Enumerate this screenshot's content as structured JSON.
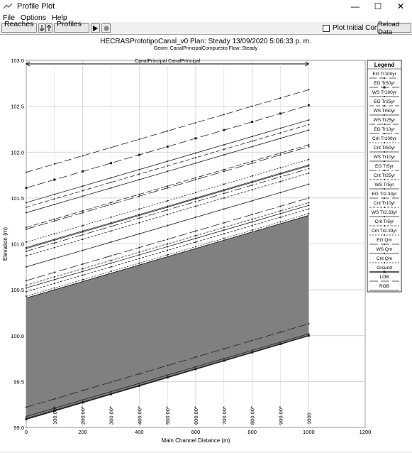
{
  "window": {
    "title": "Profile Plot",
    "controls": [
      "—",
      "☐",
      "✕"
    ]
  },
  "menu": [
    "File",
    "Options",
    "Help"
  ],
  "toolbar": {
    "reaches_label": "Reaches ...",
    "profiles_label": "Profiles ...",
    "plot_initial_label": "Plot Initial Conditions",
    "reload_label": "Reload Data"
  },
  "header": {
    "line1": "HECRASPrototipoCanal_v0       Plan: Steady     13/09/2020   5:06:33 p. m.",
    "line2": "Geom: CanalPrincipalCompuesto    Flow: Steady",
    "reach_label": "CanalPrincipal CanalPrincipal"
  },
  "chart_data": {
    "type": "line",
    "xlabel": "Main Channel Distance (m)",
    "ylabel": "Elevation (m)",
    "xlim": [
      0,
      1200
    ],
    "ylim": [
      99.0,
      103.0
    ],
    "x_ticks": [
      "0",
      "200",
      "400",
      "600",
      "800",
      "1000",
      "1200"
    ],
    "y_ticks": [
      "99.0",
      "99.5",
      "100.0",
      "100.5",
      "101.0",
      "101.5",
      "102.0",
      "102.5",
      "103.0"
    ],
    "station_labels": [
      "100.00*",
      "200.00*",
      "300.00*",
      "400.00*",
      "500.00*",
      "600.00*",
      "700.00*",
      "800.00*",
      "900.00*",
      "1000"
    ],
    "grid": true,
    "legend_title": "Legend",
    "legend_placement": "right",
    "series": [
      {
        "name": "EG  Tr100yr",
        "y0": 101.78,
        "y1": 102.68,
        "dash": "10,4",
        "marker": "dot"
      },
      {
        "name": "EG  Tr50yr",
        "y0": 101.61,
        "y1": 102.51,
        "dash": "12,4",
        "marker": "square"
      },
      {
        "name": "WS  Tr100yr",
        "y0": 101.45,
        "y1": 102.35,
        "dash": "none",
        "marker": "dot"
      },
      {
        "name": "EG  Tr25yr",
        "y0": 101.4,
        "y1": 102.3,
        "dash": "6,3",
        "marker": "dot"
      },
      {
        "name": "WS  Tr50yr",
        "y0": 101.34,
        "y1": 102.24,
        "dash": "none",
        "marker": "dot"
      },
      {
        "name": "WS  Tr25yr",
        "y0": 101.18,
        "y1": 102.08,
        "dash": "8,3",
        "marker": "dot"
      },
      {
        "name": "EG  Tr10yr",
        "y0": 101.16,
        "y1": 102.06,
        "dash": "14,4",
        "marker": "dot"
      },
      {
        "name": "Crit  Tr100yr",
        "y0": 101.02,
        "y1": 101.92,
        "dash": "2,2",
        "marker": "dot"
      },
      {
        "name": "Crit  Tr50yr",
        "y0": 100.96,
        "y1": 101.86,
        "dash": "none",
        "marker": "dot"
      },
      {
        "name": "WS  Tr10yr",
        "y0": 100.95,
        "y1": 101.85,
        "dash": "none",
        "marker": "dot"
      },
      {
        "name": "EG  Tr5yr",
        "y0": 100.92,
        "y1": 101.82,
        "dash": "10,3,2,3",
        "marker": "dot"
      },
      {
        "name": "Crit  Tr25yr",
        "y0": 100.87,
        "y1": 101.77,
        "dash": "3,2",
        "marker": "dot"
      },
      {
        "name": "WS  Tr5yr",
        "y0": 100.75,
        "y1": 101.65,
        "dash": "none",
        "marker": "dot"
      },
      {
        "name": "EG  Tr2.33yr",
        "y0": 100.6,
        "y1": 101.5,
        "dash": "12,4",
        "marker": "dot"
      },
      {
        "name": "Crit  Tr10yr",
        "y0": 100.55,
        "y1": 101.45,
        "dash": "3,2",
        "marker": "dot"
      },
      {
        "name": "WS  Tr2.33yr",
        "y0": 100.52,
        "y1": 101.42,
        "dash": "none",
        "marker": "dot"
      },
      {
        "name": "Crit  Tr5yr",
        "y0": 100.48,
        "y1": 101.38,
        "dash": "3,2",
        "marker": "dot"
      },
      {
        "name": "Crit  Tr2.33yr",
        "y0": 100.43,
        "y1": 101.33,
        "dash": "2,2",
        "marker": "dot"
      },
      {
        "name": "EG  Qm",
        "y0": 99.22,
        "y1": 100.13,
        "dash": "12,4",
        "marker": "dot"
      },
      {
        "name": "WS  Qm",
        "y0": 99.12,
        "y1": 100.02,
        "dash": "none",
        "marker": "dot"
      },
      {
        "name": "Crit  Qm",
        "y0": 99.1,
        "y1": 100.0,
        "dash": "2,2",
        "marker": "dot"
      },
      {
        "name": "Ground",
        "y0": 99.09,
        "y1": 100.0,
        "dash": "none",
        "marker": "square"
      },
      {
        "name": "LOB",
        "y0": 100.41,
        "y1": 101.31,
        "dash": "12,4",
        "marker": "none"
      },
      {
        "name": "ROB",
        "y0": 100.41,
        "y1": 101.31,
        "dash": "none",
        "marker": "none"
      }
    ],
    "fill": {
      "bottom_y0": 99.09,
      "bottom_y1": 100.0,
      "top_y0": 100.41,
      "top_y1": 101.31,
      "color": "#808080"
    }
  }
}
